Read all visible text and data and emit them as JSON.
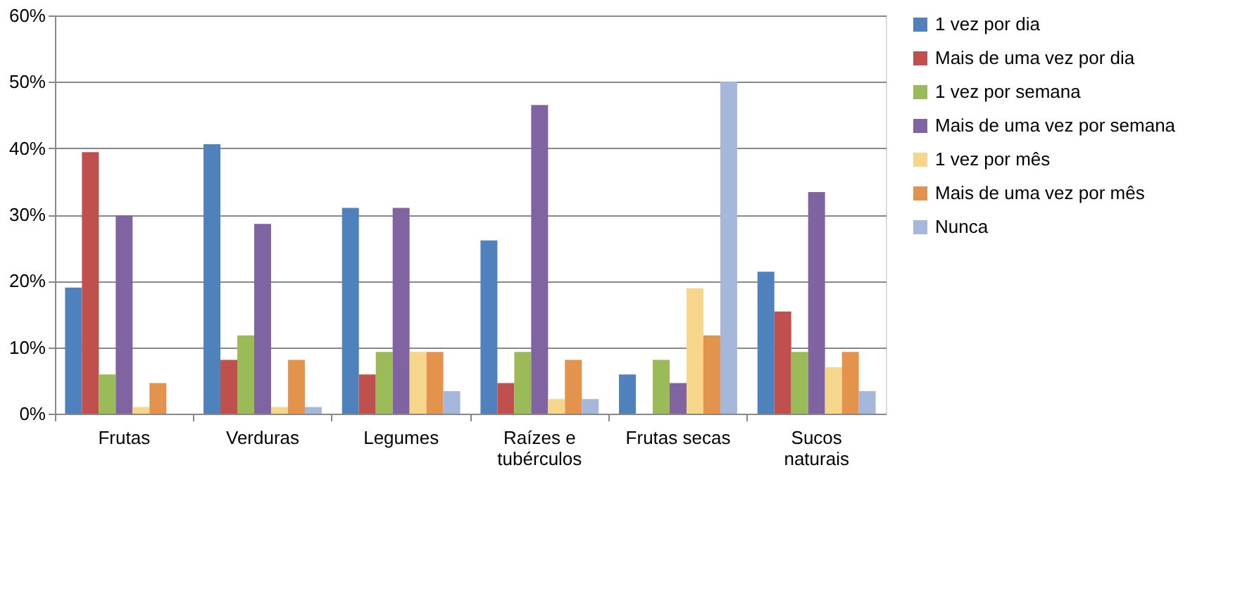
{
  "chart_data": {
    "type": "bar",
    "categories": [
      "Frutas",
      "Verduras",
      "Legumes",
      "Raízes e tubérculos",
      "Frutas secas",
      "Sucos naturais"
    ],
    "series": [
      {
        "name": "1 vez por dia",
        "color": "#4f81bd",
        "values": [
          19,
          40.6,
          31,
          26.1,
          5.9,
          21.4
        ]
      },
      {
        "name": "Mais de uma vez por dia",
        "color": "#c0504d",
        "values": [
          39.4,
          8.1,
          5.9,
          4.6,
          0,
          15.4
        ]
      },
      {
        "name": "1 vez por semana",
        "color": "#9bbb59",
        "values": [
          5.9,
          11.8,
          9.3,
          9.3,
          8.1,
          9.3
        ]
      },
      {
        "name": "Mais de uma vez por semana",
        "color": "#8064a2",
        "values": [
          29.9,
          28.6,
          31,
          46.5,
          4.6,
          33.4
        ]
      },
      {
        "name": "1 vez por mês",
        "color": "#f5d68a",
        "values": [
          1,
          1,
          9.3,
          2.2,
          18.9,
          7
        ]
      },
      {
        "name": "Mais de uma vez por mês",
        "color": "#e3934b",
        "values": [
          4.6,
          8.1,
          9.3,
          8.1,
          11.8,
          9.3
        ]
      },
      {
        "name": "Nunca",
        "color": "#a5b8dc",
        "values": [
          0,
          1,
          3.4,
          2.2,
          50,
          3.4
        ]
      }
    ],
    "ylim": [
      0,
      60
    ],
    "yticks": [
      {
        "value": 0,
        "label": "0%"
      },
      {
        "value": 10,
        "label": "10%"
      },
      {
        "value": 20,
        "label": "20%"
      },
      {
        "value": 30,
        "label": "30%"
      },
      {
        "value": 40,
        "label": "40%"
      },
      {
        "value": 50,
        "label": "50%"
      },
      {
        "value": 60,
        "label": "60%"
      }
    ],
    "grid": "y",
    "legend": "right"
  }
}
